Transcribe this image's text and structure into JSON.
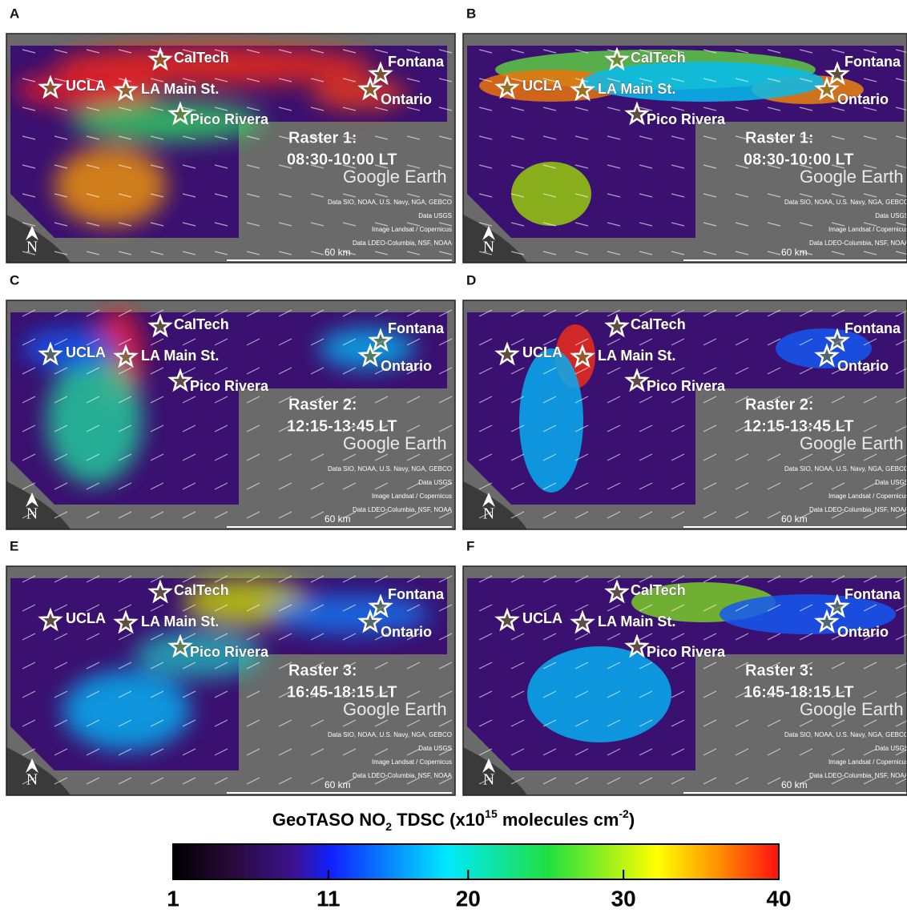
{
  "panels": [
    {
      "letter": "A",
      "sites": [
        "CalTech",
        "UCLA",
        "LA Main St.",
        "Pico Rivera",
        "Fontana",
        "Ontario"
      ],
      "raster": "Raster 1:",
      "time": "08:30-10:00 LT",
      "watermark": "Google Earth",
      "attribution": [
        "Data SIO, NOAA, U.S. Navy, NGA, GEBCO",
        "Data USGS",
        "Image Landsat / Copernicus",
        "Data LDEO-Columbia, NSF, NOAA"
      ],
      "scale": "60 km",
      "north": "N"
    },
    {
      "letter": "B",
      "sites": [
        "CalTech",
        "UCLA",
        "LA Main St.",
        "Pico Rivera",
        "Fontana",
        "Ontario"
      ],
      "raster": "Raster 1:",
      "time": "08:30-10:00 LT",
      "watermark": "Google Earth",
      "attribution": [
        "Data SIO, NOAA, U.S. Navy, NGA, GEBCO",
        "Data USGS",
        "Image Landsat / Copernicus",
        "Data LDEO-Columbia, NSF, NOAA"
      ],
      "scale": "60 km",
      "north": "N"
    },
    {
      "letter": "C",
      "sites": [
        "CalTech",
        "UCLA",
        "LA Main St.",
        "Pico Rivera",
        "Fontana",
        "Ontario"
      ],
      "raster": "Raster 2:",
      "time": "12:15-13:45 LT",
      "watermark": "Google Earth",
      "attribution": [
        "Data SIO, NOAA, U.S. Navy, NGA, GEBCO",
        "Data USGS",
        "Image Landsat / Copernicus",
        "Data LDEO-Columbia, NSF, NOAA"
      ],
      "scale": "60 km",
      "north": "N"
    },
    {
      "letter": "D",
      "sites": [
        "CalTech",
        "UCLA",
        "LA Main St.",
        "Pico Rivera",
        "Fontana",
        "Ontario"
      ],
      "raster": "Raster 2:",
      "time": "12:15-13:45 LT",
      "watermark": "Google Earth",
      "attribution": [
        "Data SIO, NOAA, U.S. Navy, NGA, GEBCO",
        "Data USGS",
        "Image Landsat / Copernicus",
        "Data LDEO-Columbia, NSF, NOAA"
      ],
      "scale": "60 km",
      "north": "N"
    },
    {
      "letter": "E",
      "sites": [
        "CalTech",
        "UCLA",
        "LA Main St.",
        "Pico Rivera",
        "Fontana",
        "Ontario"
      ],
      "raster": "Raster 3:",
      "time": "16:45-18:15 LT",
      "watermark": "Google Earth",
      "attribution": [
        "Data SIO, NOAA, U.S. Navy, NGA, GEBCO",
        "Data USGS",
        "Image Landsat / Copernicus",
        "Data LDEO-Columbia, NSF, NOAA"
      ],
      "scale": "60 km",
      "north": "N"
    },
    {
      "letter": "F",
      "sites": [
        "CalTech",
        "UCLA",
        "LA Main St.",
        "Pico Rivera",
        "Fontana",
        "Ontario"
      ],
      "raster": "Raster 3:",
      "time": "16:45-18:15 LT",
      "watermark": "Google Earth",
      "attribution": [
        "Data SIO, NOAA, U.S. Navy, NGA, GEBCO",
        "Data USGS",
        "Image Landsat / Copernicus",
        "Data LDEO-Columbia, NSF, NOAA"
      ],
      "scale": "60 km",
      "north": "N"
    }
  ],
  "colorbar": {
    "title": [
      "GeoTASO NO",
      "2",
      " TDSC (x10",
      "15",
      " molecules cm",
      "-2",
      ")"
    ],
    "lim": [
      1,
      40
    ],
    "ticks": [
      1,
      11,
      20,
      30,
      40
    ]
  }
}
